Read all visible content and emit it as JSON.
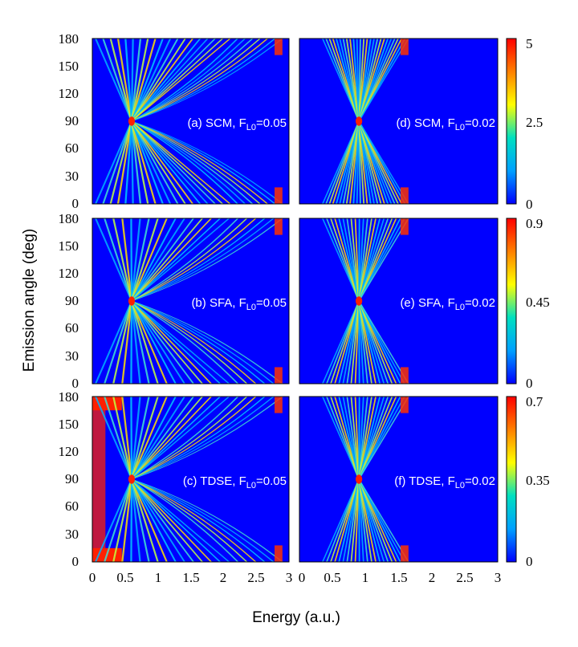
{
  "chart_data": {
    "type": "heatmap",
    "title": "",
    "xlabel": "Energy (a.u.)",
    "ylabel": "Emission angle (deg)",
    "xlim": [
      0,
      3
    ],
    "ylim": [
      0,
      180
    ],
    "x_ticks": [
      "0",
      "0.5",
      "1",
      "1.5",
      "2",
      "2.5",
      "3"
    ],
    "y_ticks": [
      "0",
      "30",
      "60",
      "90",
      "120",
      "150",
      "180"
    ],
    "colormap": [
      "#0000ff",
      "#00a0ff",
      "#00e0c0",
      "#ffff00",
      "#ff8000",
      "#ff0000"
    ],
    "rows": [
      {
        "method": "SCM",
        "colorbar": {
          "min": 0,
          "max": 5,
          "ticks": [
            "5",
            "2.5",
            "0"
          ]
        },
        "panels": [
          {
            "id": "a",
            "label_main": "(a) SCM, F",
            "label_sub": "L0",
            "label_end": "=0.05",
            "field": 0.05,
            "energy_cutoff": 2.9,
            "node_energy": 0.6
          },
          {
            "id": "d",
            "label_main": "(d) SCM, F",
            "label_sub": "L0",
            "label_end": "=0.02",
            "field": 0.02,
            "energy_cutoff": 1.65,
            "node_energy": 0.9
          }
        ]
      },
      {
        "method": "SFA",
        "colorbar": {
          "min": 0,
          "max": 0.9,
          "ticks": [
            "0.9",
            "0.45",
            "0"
          ]
        },
        "panels": [
          {
            "id": "b",
            "label_main": "(b) SFA, F",
            "label_sub": "L0",
            "label_end": "=0.05",
            "field": 0.05,
            "energy_cutoff": 2.9,
            "node_energy": 0.6
          },
          {
            "id": "e",
            "label_main": "(e) SFA, F",
            "label_sub": "L0",
            "label_end": "=0.02",
            "field": 0.02,
            "energy_cutoff": 1.65,
            "node_energy": 0.9
          }
        ]
      },
      {
        "method": "TDSE",
        "colorbar": {
          "min": 0,
          "max": 0.7,
          "ticks": [
            "0.7",
            "0.35",
            "0"
          ]
        },
        "panels": [
          {
            "id": "c",
            "label_main": "(c) TDSE, F",
            "label_sub": "L0",
            "label_end": "=0.05",
            "field": 0.05,
            "energy_cutoff": 2.9,
            "node_energy": 0.6
          },
          {
            "id": "f",
            "label_main": "(f) TDSE, F",
            "label_sub": "L0",
            "label_end": "=0.02",
            "field": 0.02,
            "energy_cutoff": 1.65,
            "node_energy": 0.9
          }
        ]
      }
    ]
  }
}
